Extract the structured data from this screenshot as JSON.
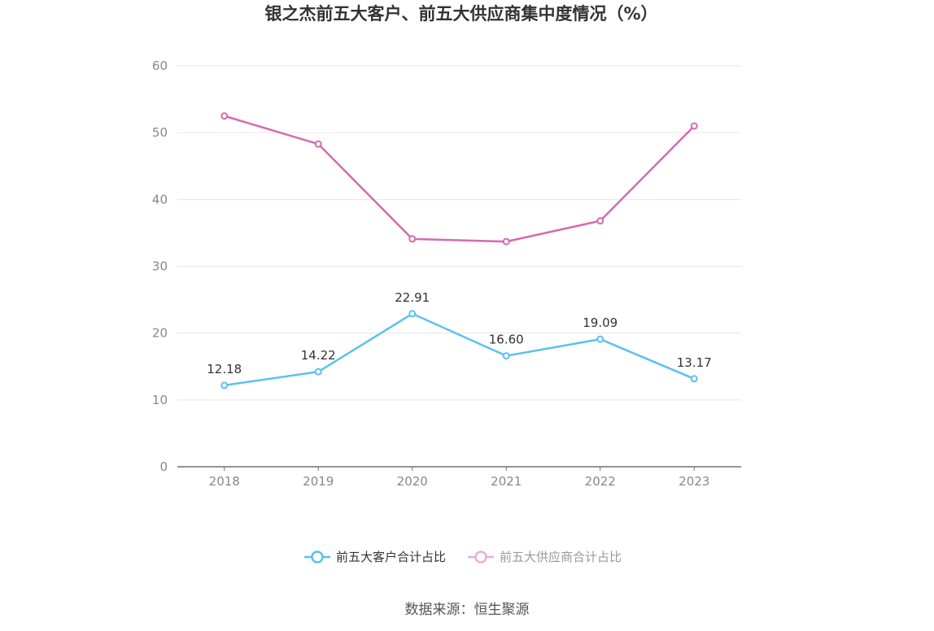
{
  "chart_data": {
    "type": "line",
    "title": "银之杰前五大客户、前五大供应商集中度情况（%）",
    "categories": [
      "2018",
      "2019",
      "2020",
      "2021",
      "2022",
      "2023"
    ],
    "ylim": [
      0,
      60
    ],
    "yticks": [
      "0",
      "10",
      "20",
      "30",
      "40",
      "50",
      "60"
    ],
    "grid": true,
    "legend_position": "bottom-center",
    "series": [
      {
        "name": "前五大客户合计占比",
        "color": "#5bc0f0",
        "values": [
          12.18,
          14.22,
          22.91,
          16.6,
          19.09,
          13.17
        ],
        "labels": [
          "12.18",
          "14.22",
          "22.91",
          "16.60",
          "19.09",
          "13.17"
        ]
      },
      {
        "name": "前五大供应商合计占比",
        "color": "#d46bb0",
        "legend_color": "#e8aed4",
        "values": [
          52.5,
          48.3,
          34.1,
          33.7,
          36.8,
          51.0
        ]
      }
    ]
  },
  "source": "数据来源：恒生聚源"
}
